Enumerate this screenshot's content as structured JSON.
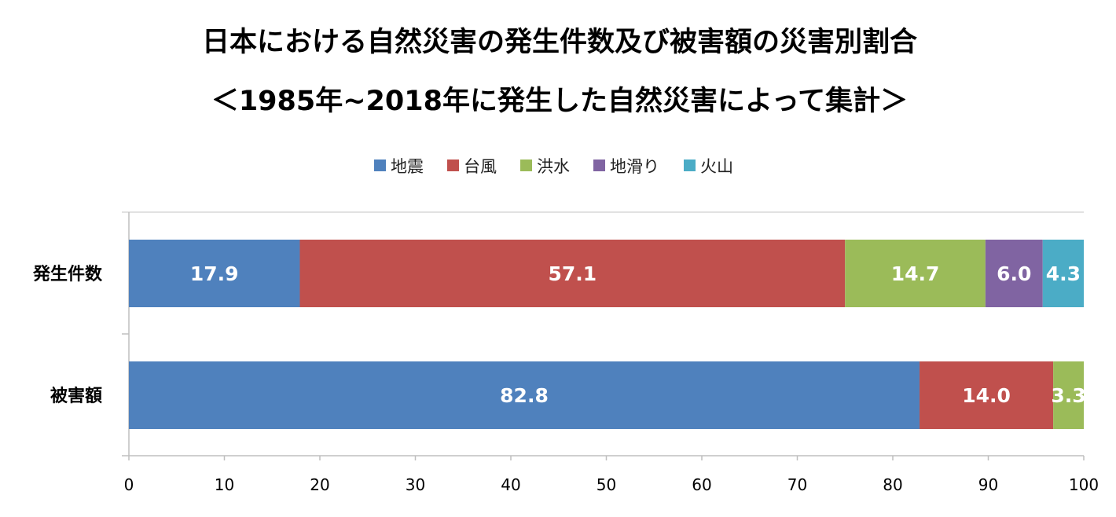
{
  "chart_data": {
    "type": "bar",
    "orientation": "horizontal",
    "stacked": true,
    "title": "日本における自然災害の発生件数及び被害額の災害別割合",
    "subtitle": "＜1985年~2018年に発生した自然災害によって集計＞",
    "categories": [
      "発生件数",
      "被害額"
    ],
    "series": [
      {
        "name": "地震",
        "color": "#4F81BD",
        "values": [
          17.9,
          82.8
        ],
        "labels": [
          "17.9",
          "82.8"
        ]
      },
      {
        "name": "台風",
        "color": "#C0504D",
        "values": [
          57.1,
          14.0
        ],
        "labels": [
          "57.1",
          "14.0"
        ]
      },
      {
        "name": "洪水",
        "color": "#9BBB59",
        "values": [
          14.7,
          3.3
        ],
        "labels": [
          "14.7",
          "3.3"
        ]
      },
      {
        "name": "地滑り",
        "color": "#8064A2",
        "values": [
          6.0,
          0.0
        ],
        "labels": [
          "6.0",
          ""
        ]
      },
      {
        "name": "火山",
        "color": "#4BACC6",
        "values": [
          4.3,
          0.0
        ],
        "labels": [
          "4.3",
          ""
        ]
      }
    ],
    "xlim": [
      0,
      100
    ],
    "xticks": [
      0,
      10,
      20,
      30,
      40,
      50,
      60,
      70,
      80,
      90,
      100
    ],
    "xticklabels": [
      "0",
      "10",
      "20",
      "30",
      "40",
      "50",
      "60",
      "70",
      "80",
      "90",
      "100"
    ],
    "legend_position": "top",
    "grid": false
  }
}
